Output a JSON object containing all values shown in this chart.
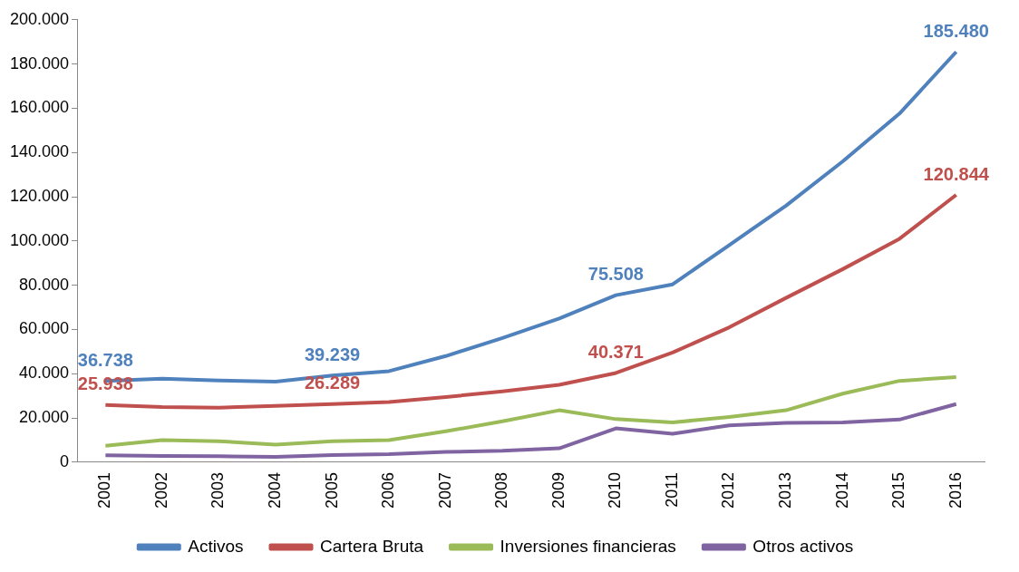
{
  "chart_data": {
    "type": "line",
    "categories": [
      "2001",
      "2002",
      "2003",
      "2004",
      "2005",
      "2006",
      "2007",
      "2008",
      "2009",
      "2010",
      "2011",
      "2012",
      "2013",
      "2014",
      "2015",
      "2016"
    ],
    "series": [
      {
        "name": "Activos",
        "color": "#4f81bd",
        "values": [
          36738,
          37800,
          37000,
          36400,
          39239,
          41200,
          48000,
          56200,
          65000,
          75508,
          80400,
          98200,
          116000,
          136000,
          157600,
          185480
        ],
        "value_labels": [
          "36.738",
          null,
          null,
          null,
          "39.239",
          null,
          null,
          null,
          null,
          "75.508",
          null,
          null,
          null,
          null,
          null,
          "185.480"
        ]
      },
      {
        "name": "Cartera Bruta",
        "color": "#c0504d",
        "values": [
          25938,
          25000,
          24700,
          25500,
          26289,
          27200,
          29500,
          32000,
          35000,
          40371,
          49600,
          61000,
          74300,
          87300,
          101000,
          120844
        ],
        "value_labels": [
          "25.938",
          null,
          null,
          null,
          "26.289",
          null,
          null,
          null,
          null,
          "40.371",
          null,
          null,
          null,
          null,
          null,
          "120.844"
        ]
      },
      {
        "name": "Inversiones financieras",
        "color": "#9bbb59",
        "values": [
          7500,
          10000,
          9500,
          8000,
          9500,
          10000,
          14000,
          18500,
          23500,
          19500,
          18000,
          20500,
          23500,
          31000,
          36800,
          38500
        ]
      },
      {
        "name": "Otros activos",
        "color": "#8064a2",
        "values": [
          3200,
          2800,
          2700,
          2400,
          3300,
          3700,
          4700,
          5200,
          6300,
          15300,
          12900,
          16700,
          17800,
          18000,
          19300,
          26300
        ]
      }
    ],
    "ylim": [
      0,
      200000
    ],
    "yticks": [
      {
        "value": 0,
        "label": "0"
      },
      {
        "value": 20000,
        "label": "20.000"
      },
      {
        "value": 40000,
        "label": "40.000"
      },
      {
        "value": 60000,
        "label": "60.000"
      },
      {
        "value": 80000,
        "label": "80.000"
      },
      {
        "value": 100000,
        "label": "100.000"
      },
      {
        "value": 120000,
        "label": "120.000"
      },
      {
        "value": 140000,
        "label": "140.000"
      },
      {
        "value": 160000,
        "label": "160.000"
      },
      {
        "value": 180000,
        "label": "180.000"
      },
      {
        "value": 200000,
        "label": "200.000"
      }
    ],
    "grid": false,
    "legend": "bottom",
    "marker": "none",
    "line_style": "solid"
  }
}
